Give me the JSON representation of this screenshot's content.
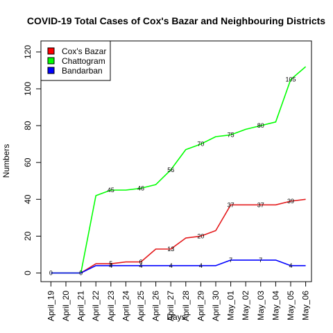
{
  "chart_data": {
    "type": "line",
    "title": "COVID-19 Total Cases of Cox's Bazar and Neighbouring Districts",
    "xlabel": "Days",
    "ylabel": "Numbers",
    "ylim": [
      0,
      120
    ],
    "yticks": [
      0,
      20,
      40,
      60,
      80,
      100,
      120
    ],
    "grid": false,
    "legend_position": "top-left",
    "categories": [
      "April_19",
      "April_20",
      "April_21",
      "April_22",
      "April_23",
      "April_24",
      "April_25",
      "April_26",
      "April_27",
      "April_28",
      "April_29",
      "April_30",
      "May_01",
      "May_02",
      "May_03",
      "May_04",
      "May_05",
      "May_06"
    ],
    "series": [
      {
        "name": "Cox's Bazar",
        "color": "#e41a1c",
        "legend_color": "#ff0000",
        "values": [
          0,
          0,
          0,
          5,
          5,
          6,
          6,
          13,
          13,
          19,
          20,
          23,
          37,
          37,
          37,
          37,
          39,
          40
        ]
      },
      {
        "name": "Chattogram",
        "color": "#00ff00",
        "legend_color": "#00ff00",
        "values": [
          0,
          0,
          0,
          42,
          45,
          45,
          46,
          48,
          56,
          67,
          70,
          74,
          75,
          78,
          80,
          82,
          105,
          112
        ]
      },
      {
        "name": "Bandarban",
        "color": "#0000ff",
        "legend_color": "#0000ff",
        "values": [
          0,
          0,
          0,
          4,
          4,
          4,
          4,
          4,
          4,
          4,
          4,
          4,
          7,
          7,
          7,
          7,
          4,
          4
        ]
      }
    ],
    "annotations": [
      {
        "x": "April_19",
        "y": 0,
        "text": "0"
      },
      {
        "x": "April_21",
        "y": 0,
        "text": "0"
      },
      {
        "x": "April_23",
        "y": 45,
        "text": "45"
      },
      {
        "x": "April_25",
        "y": 46,
        "text": "46"
      },
      {
        "x": "April_27",
        "y": 56,
        "text": "56"
      },
      {
        "x": "April_29",
        "y": 70,
        "text": "70"
      },
      {
        "x": "May_01",
        "y": 75,
        "text": "75"
      },
      {
        "x": "May_03",
        "y": 80,
        "text": "80"
      },
      {
        "x": "May_05",
        "y": 105,
        "text": "105"
      },
      {
        "x": "April_23",
        "y": 5,
        "text": "5"
      },
      {
        "x": "April_25",
        "y": 6,
        "text": "6"
      },
      {
        "x": "April_27",
        "y": 13,
        "text": "13"
      },
      {
        "x": "April_29",
        "y": 20,
        "text": "20"
      },
      {
        "x": "May_01",
        "y": 37,
        "text": "37"
      },
      {
        "x": "May_03",
        "y": 37,
        "text": "37"
      },
      {
        "x": "May_05",
        "y": 39,
        "text": "39"
      },
      {
        "x": "April_23",
        "y": 4,
        "text": "4"
      },
      {
        "x": "April_25",
        "y": 4,
        "text": "4"
      },
      {
        "x": "April_27",
        "y": 4,
        "text": "4"
      },
      {
        "x": "April_29",
        "y": 4,
        "text": "4"
      },
      {
        "x": "May_01",
        "y": 7,
        "text": "7"
      },
      {
        "x": "May_03",
        "y": 7,
        "text": "7"
      },
      {
        "x": "May_05",
        "y": 4,
        "text": "4"
      }
    ]
  }
}
